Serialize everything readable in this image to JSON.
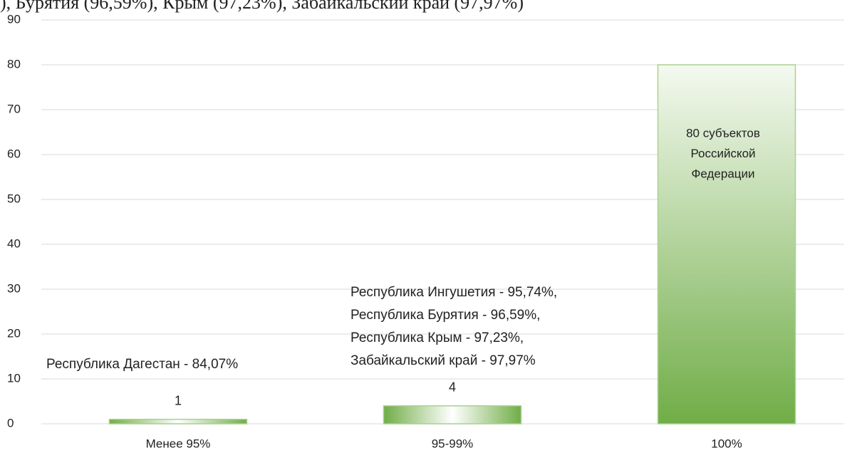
{
  "chart_data": {
    "type": "bar",
    "caption_fragment": "), Бурятия (96,59%), Крым (97,23%), Забайкальский край (97,97%)",
    "categories": [
      "Менее 95%",
      "95-99%",
      "100%"
    ],
    "values": [
      1,
      4,
      80
    ],
    "color": "#70ad47",
    "ylim": [
      0,
      90
    ],
    "yticks": [
      0,
      10,
      20,
      30,
      40,
      50,
      60,
      70,
      80,
      90
    ],
    "grid": true,
    "annotations": [
      [
        "Республика Дагестан - 84,07%"
      ],
      [
        "Республика Ингушетия -  95,74%,",
        "Республика Бурятия - 96,59%,",
        "Республика Крым - 97,23%,",
        "Забайкальский край - 97,97%"
      ],
      [
        "80 субъектов",
        "Российской",
        "Федерации"
      ]
    ]
  }
}
